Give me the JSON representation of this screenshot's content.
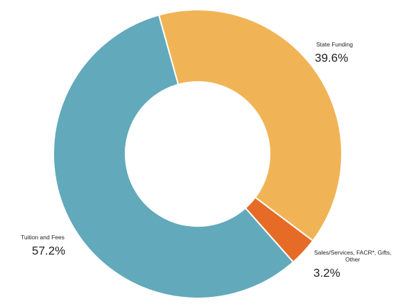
{
  "chart_data": {
    "type": "pie",
    "style": "donut",
    "title": "",
    "slices": [
      {
        "label": "State Funding",
        "value": 39.6,
        "display": "39.6%",
        "color": "#F0B457"
      },
      {
        "label": "Sales/Services, FACR*, Gifts, Other",
        "label_lines": [
          "Sales/Services, FACR*, Gifts,",
          "Other"
        ],
        "value": 3.2,
        "display": "3.2%",
        "color": "#E56B26"
      },
      {
        "label": "Tuition and Fees",
        "value": 57.2,
        "display": "57.2%",
        "color": "#62A9BC"
      }
    ],
    "legend": "none"
  }
}
